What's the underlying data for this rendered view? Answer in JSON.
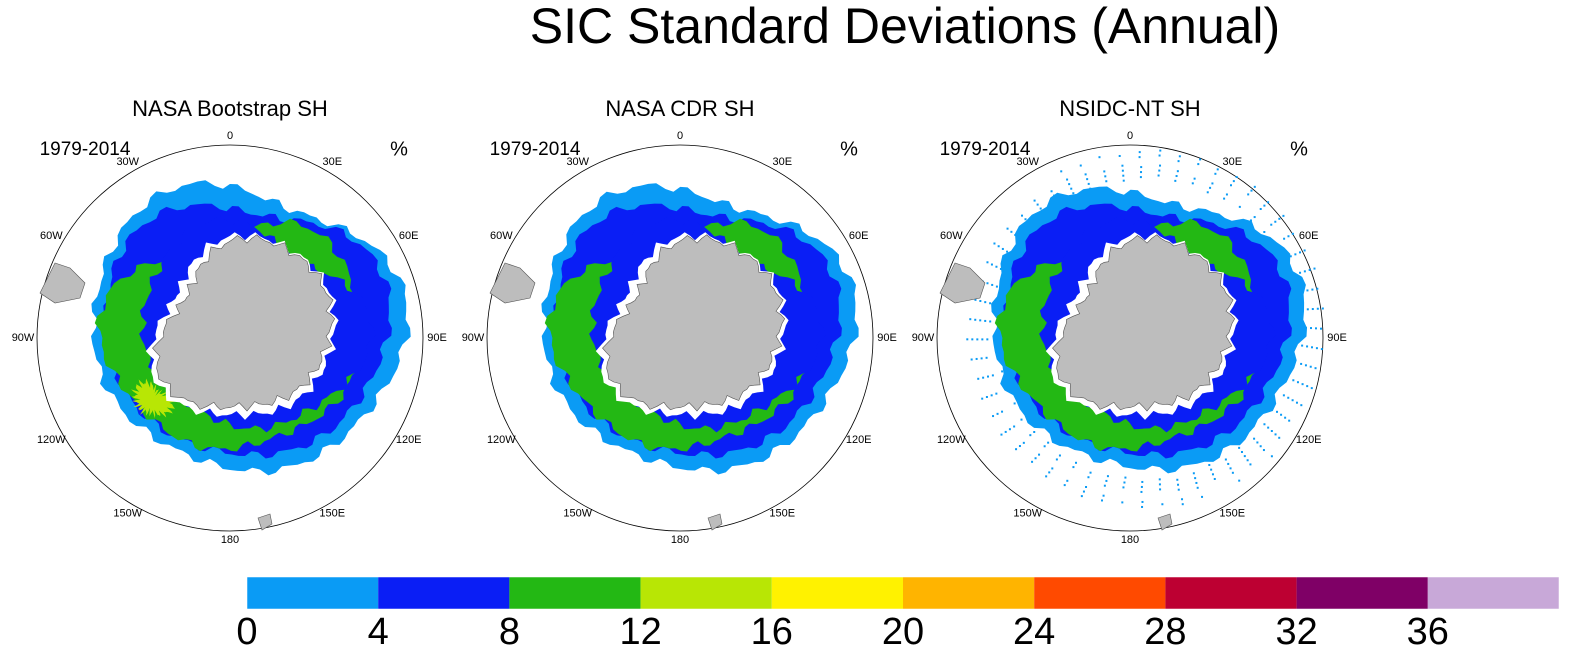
{
  "title": "SIC Standard Deviations (Annual)",
  "panels": [
    {
      "title": "NASA Bootstrap SH",
      "period": "1979-2014",
      "units": "%"
    },
    {
      "title": "NASA CDR SH",
      "period": "1979-2014",
      "units": "%"
    },
    {
      "title": "NSIDC-NT SH",
      "period": "1979-2014",
      "units": "%"
    }
  ],
  "longitude_labels": [
    "0",
    "30E",
    "60E",
    "90E",
    "120E",
    "150E",
    "180",
    "150W",
    "120W",
    "90W",
    "60W",
    "30W"
  ],
  "colorbar": {
    "colors": [
      "#0a9bf5",
      "#0a1ef5",
      "#23b814",
      "#b8e605",
      "#fff200",
      "#ffb400",
      "#ff4a00",
      "#bd0032",
      "#7f0066",
      "#c8a8d8"
    ],
    "ticks": [
      0,
      4,
      8,
      12,
      16,
      20,
      24,
      28,
      32,
      36
    ]
  }
}
